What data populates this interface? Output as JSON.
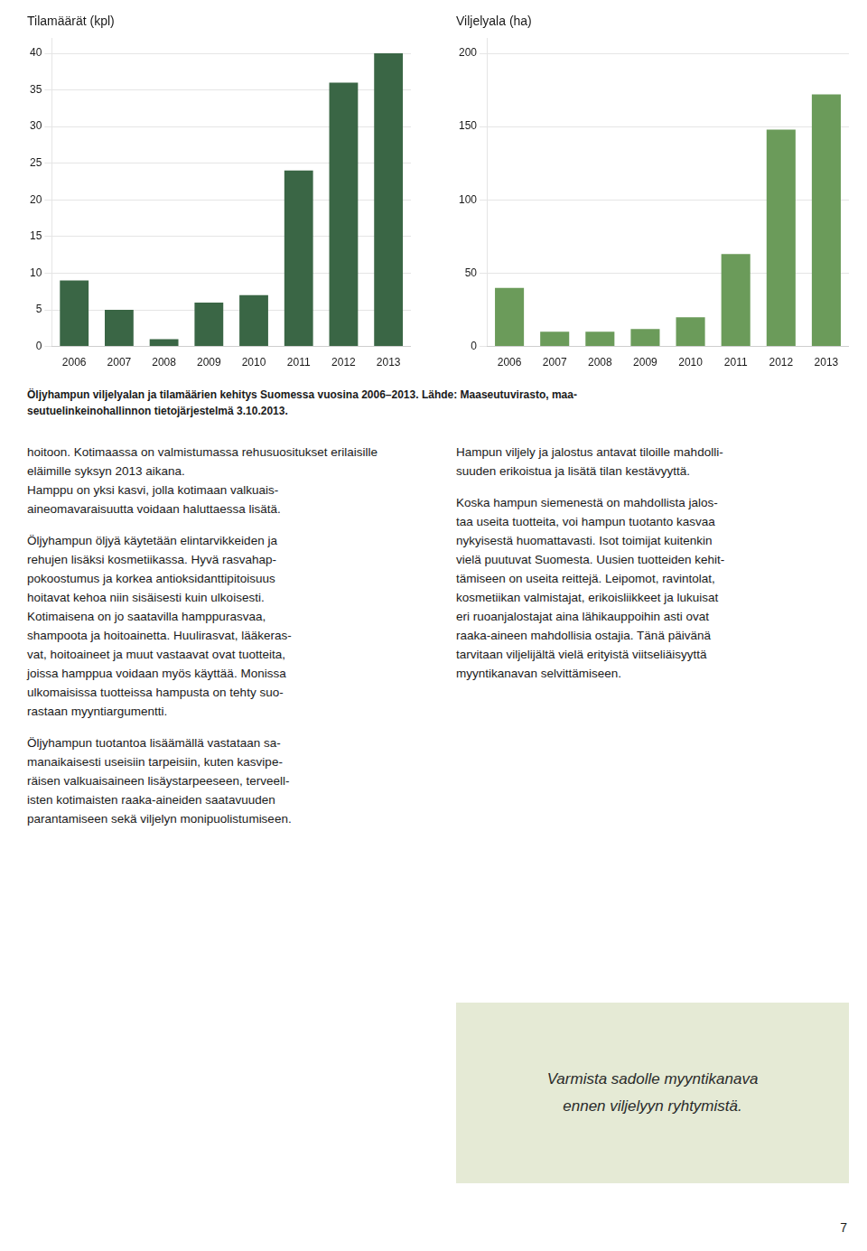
{
  "chart_data": [
    {
      "type": "bar",
      "title": "Tilamäärät (kpl)",
      "categories": [
        "2006",
        "2007",
        "2008",
        "2009",
        "2010",
        "2011",
        "2012",
        "2013"
      ],
      "values": [
        9,
        5,
        1,
        6,
        7,
        24,
        36,
        40
      ],
      "color": "#3a6645",
      "ylim": [
        0,
        42
      ],
      "yticks": [
        0,
        5,
        10,
        15,
        20,
        25,
        30,
        35,
        40
      ],
      "grid": true
    },
    {
      "type": "bar",
      "title": "Viljelyala (ha)",
      "categories": [
        "2006",
        "2007",
        "2008",
        "2009",
        "2010",
        "2011",
        "2012",
        "2013"
      ],
      "values": [
        40,
        10,
        10,
        12,
        20,
        63,
        148,
        172
      ],
      "color": "#6b9b5a",
      "ylim": [
        0,
        210
      ],
      "yticks": [
        0,
        50,
        100,
        150,
        200
      ],
      "grid": true
    }
  ],
  "caption": [
    "Öljyhampun viljelyalan ja tilamäärien kehitys Suomessa vuosina 2006–2013. Lähde: Maaseutuvirasto, maa-",
    "seutuelinkeinohallinnon tietojärjestelmä 3.10.2013."
  ],
  "text_left": [
    [
      "hoitoon. Kotimaassa on valmistumassa rehusuositukset erilaisille eläimille syksyn 2013 aikana.",
      "Hamppu on yksi kasvi, jolla kotimaan valkuais-",
      "aineomavaraisuutta voidaan haluttaessa lisätä."
    ],
    [
      "Öljyhampun öljyä käytetään elintarvikkeiden ja",
      "rehujen lisäksi kosmetiikassa. Hyvä rasvahap-",
      "pokoostumus ja korkea antioksidanttipitoisuus",
      "hoitavat kehoa niin sisäisesti kuin ulkoisesti.",
      "Kotimaisena on jo saatavilla hamppurasvaa,",
      "shampoota ja hoitoainetta. Huulirasvat, lääkeras-",
      "vat, hoitoaineet ja muut vastaavat ovat tuotteita,",
      "joissa hamppua voidaan myös käyttää. Monissa",
      "ulkomaisissa tuotteissa hampusta on tehty suo-",
      "rastaan myyntiargumentti."
    ],
    [
      "Öljyhampun tuotantoa lisäämällä vastataan sa-",
      "manaikaisesti useisiin tarpeisiin, kuten kasvipe-",
      "räisen valkuaisaineen lisäystarpeeseen, terveell-",
      "isten kotimaisten raaka-aineiden saatavuuden",
      "parantamiseen sekä viljelyn monipuolistumiseen."
    ]
  ],
  "text_right": [
    [
      "Hampun viljely ja jalostus antavat tiloille mahdolli-",
      "suuden erikoistua ja lisätä tilan kestävyyttä."
    ],
    [
      "Koska hampun siemenestä on mahdollista jalos-",
      "taa useita tuotteita, voi hampun tuotanto kasvaa",
      "nykyisestä huomattavasti. Isot toimijat kuitenkin",
      "vielä puutuvat Suomesta. Uusien tuotteiden kehit-",
      "tämiseen on useita reittejä. Leipomot, ravintolat,",
      "kosmetiikan valmistajat, erikoisliikkeet ja lukuisat",
      "eri ruoanjalostajat aina lähikauppoihin asti ovat",
      "raaka-aineen mahdollisia ostajia. Tänä päivänä",
      "tarvitaan viljelijältä vielä erityistä viitseliäisyyttä",
      "myyntikanavan selvittämiseen."
    ]
  ],
  "highlight": [
    "Varmista sadolle myyntikanava",
    "ennen viljelyyn ryhtymistä."
  ],
  "highlight_color": "#e5ead5",
  "page_number": "7"
}
